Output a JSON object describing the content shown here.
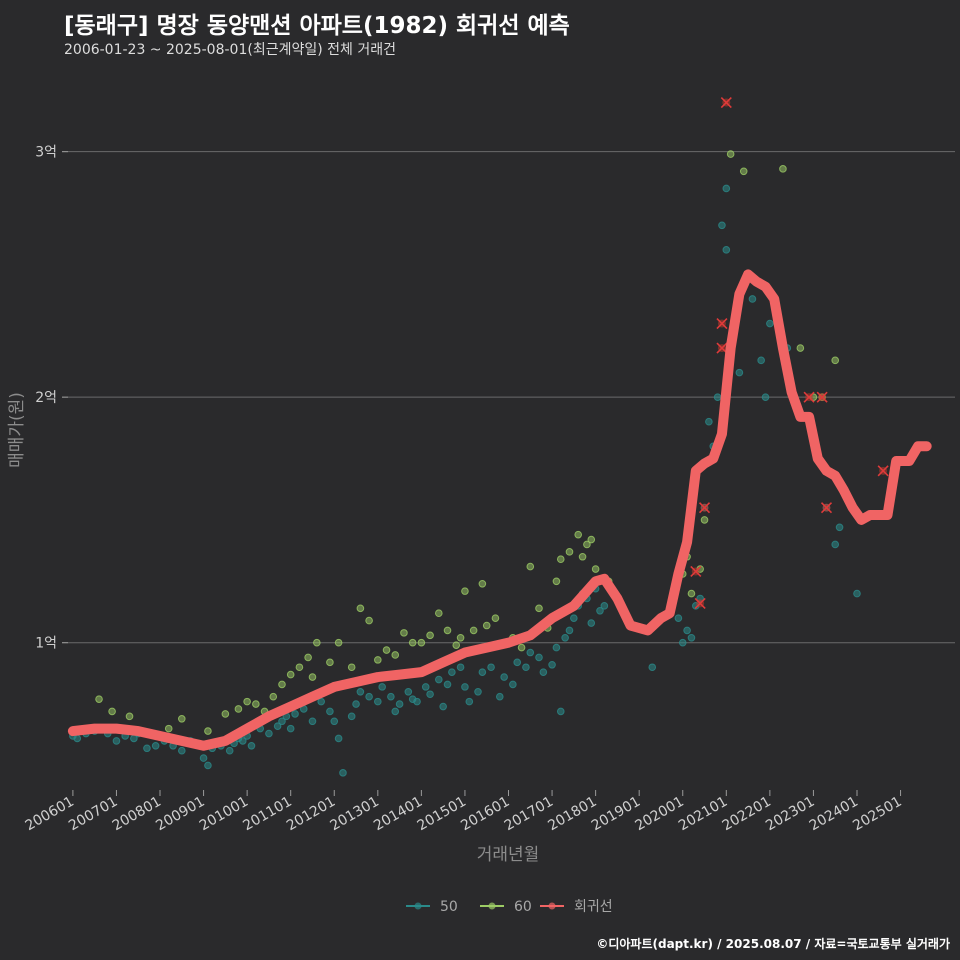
{
  "header": {
    "title": "[동래구] 명장 동양맨션 아파트(1982) 회귀선 예측",
    "subtitle": "2006-01-23 ~ 2025-08-01(최근계약일) 전체 거래건"
  },
  "footer": {
    "credit": "©디아파트(dapt.kr) / 2025.08.07 / 자료=국토교통부 실거래가"
  },
  "colors": {
    "background": "#2a2a2c",
    "gridline": "#6b6b6b",
    "series_50": "#2a8a8a",
    "series_60": "#9ccc65",
    "regression": "#f06464",
    "text": "#cfcfcf"
  },
  "chart_data": {
    "type": "scatter",
    "title": "[동래구] 명장 동양맨션 아파트(1982) 회귀선 예측",
    "subtitle": "2006-01-23 ~ 2025-08-01(최근계약일) 전체 거래건",
    "xlabel": "거래년월",
    "ylabel": "매매가(원)",
    "x_ticks": [
      "200601",
      "200701",
      "200801",
      "200901",
      "201001",
      "201101",
      "201201",
      "201301",
      "201401",
      "201501",
      "201601",
      "201701",
      "201801",
      "201901",
      "202001",
      "202101",
      "202201",
      "202301",
      "202401",
      "202501"
    ],
    "y_ticks": [
      {
        "value": 1,
        "label": "1억"
      },
      {
        "value": 2,
        "label": "2억"
      },
      {
        "value": 3,
        "label": "3억"
      }
    ],
    "y_unit": "억원",
    "xlim": [
      2005.75,
      2026.25
    ],
    "ylim": [
      0.4,
      3.3
    ],
    "grid": "horizontal",
    "legend": {
      "position": "bottom",
      "items": [
        "50",
        "60",
        "회귀선"
      ]
    },
    "series": [
      {
        "name": "50",
        "points": [
          [
            2006.0,
            0.62
          ],
          [
            2006.1,
            0.61
          ],
          [
            2006.3,
            0.63
          ],
          [
            2006.5,
            0.64
          ],
          [
            2006.8,
            0.63
          ],
          [
            2007.0,
            0.6
          ],
          [
            2007.2,
            0.62
          ],
          [
            2007.4,
            0.61
          ],
          [
            2007.5,
            0.63
          ],
          [
            2007.7,
            0.57
          ],
          [
            2007.9,
            0.58
          ],
          [
            2008.1,
            0.6
          ],
          [
            2008.3,
            0.58
          ],
          [
            2008.5,
            0.56
          ],
          [
            2008.7,
            0.6
          ],
          [
            2008.9,
            0.58
          ],
          [
            2009.0,
            0.53
          ],
          [
            2009.1,
            0.5
          ],
          [
            2009.2,
            0.57
          ],
          [
            2009.4,
            0.58
          ],
          [
            2009.6,
            0.56
          ],
          [
            2009.7,
            0.59
          ],
          [
            2009.8,
            0.61
          ],
          [
            2009.9,
            0.6
          ],
          [
            2010.0,
            0.62
          ],
          [
            2010.1,
            0.58
          ],
          [
            2010.3,
            0.65
          ],
          [
            2010.5,
            0.63
          ],
          [
            2010.7,
            0.66
          ],
          [
            2010.8,
            0.68
          ],
          [
            2010.9,
            0.7
          ],
          [
            2011.0,
            0.65
          ],
          [
            2011.1,
            0.71
          ],
          [
            2011.3,
            0.73
          ],
          [
            2011.5,
            0.68
          ],
          [
            2011.7,
            0.76
          ],
          [
            2011.9,
            0.72
          ],
          [
            2012.0,
            0.68
          ],
          [
            2012.1,
            0.61
          ],
          [
            2012.2,
            0.47
          ],
          [
            2012.4,
            0.7
          ],
          [
            2012.5,
            0.75
          ],
          [
            2012.6,
            0.8
          ],
          [
            2012.8,
            0.78
          ],
          [
            2013.0,
            0.76
          ],
          [
            2013.1,
            0.82
          ],
          [
            2013.3,
            0.78
          ],
          [
            2013.4,
            0.72
          ],
          [
            2013.5,
            0.75
          ],
          [
            2013.7,
            0.8
          ],
          [
            2013.8,
            0.77
          ],
          [
            2013.9,
            0.76
          ],
          [
            2014.1,
            0.82
          ],
          [
            2014.2,
            0.79
          ],
          [
            2014.4,
            0.85
          ],
          [
            2014.5,
            0.74
          ],
          [
            2014.6,
            0.83
          ],
          [
            2014.7,
            0.88
          ],
          [
            2014.9,
            0.9
          ],
          [
            2015.0,
            0.82
          ],
          [
            2015.1,
            0.76
          ],
          [
            2015.3,
            0.8
          ],
          [
            2015.4,
            0.88
          ],
          [
            2015.6,
            0.9
          ],
          [
            2015.8,
            0.78
          ],
          [
            2015.9,
            0.86
          ],
          [
            2016.1,
            0.83
          ],
          [
            2016.2,
            0.92
          ],
          [
            2016.4,
            0.9
          ],
          [
            2016.5,
            0.96
          ],
          [
            2016.7,
            0.94
          ],
          [
            2016.8,
            0.88
          ],
          [
            2017.0,
            0.91
          ],
          [
            2017.1,
            0.98
          ],
          [
            2017.2,
            0.72
          ],
          [
            2017.3,
            1.02
          ],
          [
            2017.4,
            1.05
          ],
          [
            2017.5,
            1.1
          ],
          [
            2017.6,
            1.15
          ],
          [
            2017.7,
            1.2
          ],
          [
            2017.8,
            1.18
          ],
          [
            2017.9,
            1.08
          ],
          [
            2018.0,
            1.22
          ],
          [
            2018.1,
            1.13
          ],
          [
            2018.2,
            1.15
          ],
          [
            2019.3,
            0.9
          ],
          [
            2019.9,
            1.1
          ],
          [
            2020.0,
            1.0
          ],
          [
            2020.1,
            1.05
          ],
          [
            2020.2,
            1.02
          ],
          [
            2020.3,
            1.15
          ],
          [
            2020.4,
            1.18
          ],
          [
            2020.5,
            1.55
          ],
          [
            2020.6,
            1.9
          ],
          [
            2020.7,
            1.8
          ],
          [
            2020.8,
            2.0
          ],
          [
            2020.9,
            2.7
          ],
          [
            2021.0,
            2.85
          ],
          [
            2021.0,
            2.6
          ],
          [
            2021.1,
            2.2
          ],
          [
            2021.3,
            2.1
          ],
          [
            2021.6,
            2.4
          ],
          [
            2021.8,
            2.15
          ],
          [
            2021.9,
            2.0
          ],
          [
            2022.0,
            2.3
          ],
          [
            2022.4,
            2.2
          ],
          [
            2023.3,
            1.55
          ],
          [
            2023.5,
            1.4
          ],
          [
            2023.6,
            1.47
          ],
          [
            2024.0,
            1.2
          ]
        ]
      },
      {
        "name": "60",
        "points": [
          [
            2006.6,
            0.77
          ],
          [
            2006.9,
            0.72
          ],
          [
            2007.3,
            0.7
          ],
          [
            2008.2,
            0.65
          ],
          [
            2008.5,
            0.69
          ],
          [
            2009.1,
            0.64
          ],
          [
            2009.5,
            0.71
          ],
          [
            2009.8,
            0.73
          ],
          [
            2010.0,
            0.76
          ],
          [
            2010.2,
            0.75
          ],
          [
            2010.4,
            0.72
          ],
          [
            2010.6,
            0.78
          ],
          [
            2010.8,
            0.83
          ],
          [
            2011.0,
            0.87
          ],
          [
            2011.2,
            0.9
          ],
          [
            2011.4,
            0.94
          ],
          [
            2011.5,
            0.86
          ],
          [
            2011.6,
            1.0
          ],
          [
            2011.9,
            0.92
          ],
          [
            2012.1,
            1.0
          ],
          [
            2012.4,
            0.9
          ],
          [
            2012.6,
            1.14
          ],
          [
            2012.8,
            1.09
          ],
          [
            2013.0,
            0.93
          ],
          [
            2013.2,
            0.97
          ],
          [
            2013.4,
            0.95
          ],
          [
            2013.6,
            1.04
          ],
          [
            2013.8,
            1.0
          ],
          [
            2014.0,
            1.0
          ],
          [
            2014.2,
            1.03
          ],
          [
            2014.4,
            1.12
          ],
          [
            2014.6,
            1.05
          ],
          [
            2014.8,
            0.99
          ],
          [
            2014.9,
            1.02
          ],
          [
            2015.0,
            1.21
          ],
          [
            2015.2,
            1.05
          ],
          [
            2015.4,
            1.24
          ],
          [
            2015.5,
            1.07
          ],
          [
            2015.7,
            1.1
          ],
          [
            2015.9,
            1.0
          ],
          [
            2016.1,
            1.02
          ],
          [
            2016.3,
            0.98
          ],
          [
            2016.5,
            1.31
          ],
          [
            2016.7,
            1.14
          ],
          [
            2016.9,
            1.06
          ],
          [
            2017.1,
            1.25
          ],
          [
            2017.2,
            1.34
          ],
          [
            2017.4,
            1.37
          ],
          [
            2017.6,
            1.44
          ],
          [
            2017.7,
            1.35
          ],
          [
            2017.8,
            1.4
          ],
          [
            2017.9,
            1.42
          ],
          [
            2018.0,
            1.3
          ],
          [
            2018.3,
            1.25
          ],
          [
            2020.0,
            1.28
          ],
          [
            2020.1,
            1.35
          ],
          [
            2020.2,
            1.2
          ],
          [
            2020.4,
            1.3
          ],
          [
            2020.5,
            1.5
          ],
          [
            2021.1,
            2.99
          ],
          [
            2021.4,
            2.92
          ],
          [
            2022.3,
            2.93
          ],
          [
            2022.7,
            2.2
          ],
          [
            2023.0,
            2.0
          ],
          [
            2023.2,
            2.0
          ],
          [
            2023.5,
            2.15
          ]
        ]
      },
      {
        "name": "회귀선",
        "x": [
          2006.0,
          2006.5,
          2007.0,
          2007.5,
          2008.0,
          2008.5,
          2009.0,
          2009.5,
          2010.0,
          2010.5,
          2011.0,
          2011.5,
          2012.0,
          2012.5,
          2013.0,
          2013.5,
          2014.0,
          2014.5,
          2015.0,
          2015.5,
          2016.0,
          2016.5,
          2017.0,
          2017.5,
          2018.0,
          2018.2,
          2018.5,
          2018.8,
          2019.2,
          2019.5,
          2019.7,
          2019.9,
          2020.1,
          2020.3,
          2020.5,
          2020.7,
          2020.9,
          2021.1,
          2021.3,
          2021.5,
          2021.7,
          2021.9,
          2022.1,
          2022.3,
          2022.5,
          2022.7,
          2022.9,
          2023.1,
          2023.3,
          2023.5,
          2023.7,
          2023.9,
          2024.1,
          2024.3,
          2024.7,
          2024.9,
          2025.2,
          2025.4,
          2025.6
        ],
        "y": [
          0.64,
          0.65,
          0.65,
          0.64,
          0.62,
          0.6,
          0.58,
          0.6,
          0.65,
          0.7,
          0.74,
          0.78,
          0.82,
          0.84,
          0.86,
          0.87,
          0.88,
          0.92,
          0.96,
          0.98,
          1.0,
          1.03,
          1.1,
          1.15,
          1.25,
          1.26,
          1.18,
          1.07,
          1.05,
          1.1,
          1.12,
          1.28,
          1.41,
          1.7,
          1.73,
          1.75,
          1.85,
          2.2,
          2.42,
          2.5,
          2.47,
          2.45,
          2.4,
          2.2,
          2.02,
          1.92,
          1.92,
          1.75,
          1.7,
          1.68,
          1.62,
          1.55,
          1.5,
          1.52,
          1.52,
          1.74,
          1.74,
          1.8,
          1.8
        ]
      }
    ],
    "marked_points": [
      [
        2020.3,
        1.29
      ],
      [
        2020.4,
        1.16
      ],
      [
        2020.5,
        1.55
      ],
      [
        2020.9,
        2.3
      ],
      [
        2020.9,
        2.2
      ],
      [
        2021.0,
        3.2
      ],
      [
        2022.9,
        2.0
      ],
      [
        2023.3,
        1.55
      ],
      [
        2023.2,
        2.0
      ],
      [
        2024.6,
        1.7
      ]
    ]
  }
}
